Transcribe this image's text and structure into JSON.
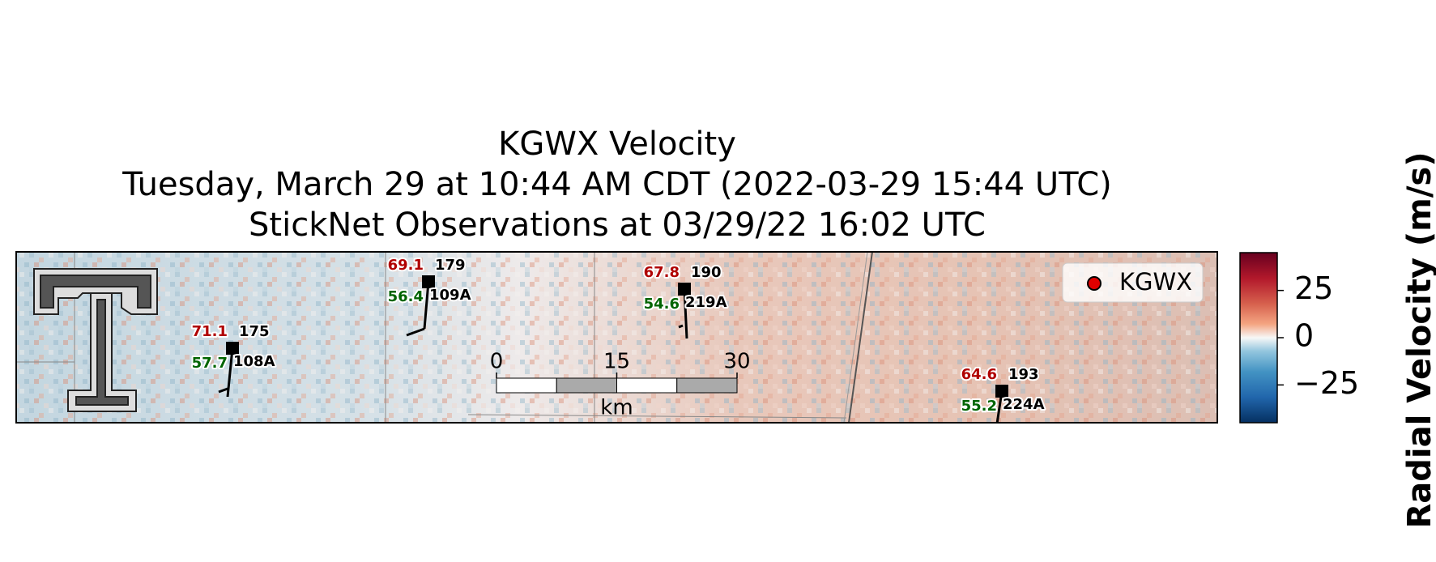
{
  "title_lines": [
    "KGWX Velocity",
    "Tuesday, March 29 at 10:44 AM CDT (2022-03-29 15:44 UTC)",
    "StickNet Observations at 03/29/22 16:02 UTC"
  ],
  "legend": {
    "label": "KGWX",
    "color": "#e00000"
  },
  "scale_bar": {
    "ticks": [
      0,
      15,
      30
    ],
    "unit": "km"
  },
  "colorbar": {
    "label": "Radial Velocity (m/s)",
    "lim": [
      -45,
      45
    ],
    "ticks": [
      25,
      0,
      {
        "value": -25,
        "label": "−25"
      }
    ]
  },
  "stations": [
    {
      "id": "108A",
      "temperature": 71.1,
      "dewpoint": 57.7,
      "code": 175
    },
    {
      "id": "109A",
      "temperature": 69.1,
      "dewpoint": 56.4,
      "code": 179
    },
    {
      "id": "219A",
      "temperature": 67.8,
      "dewpoint": 54.6,
      "code": 190
    },
    {
      "id": "224A",
      "temperature": 64.6,
      "dewpoint": 55.2,
      "code": 193
    }
  ]
}
